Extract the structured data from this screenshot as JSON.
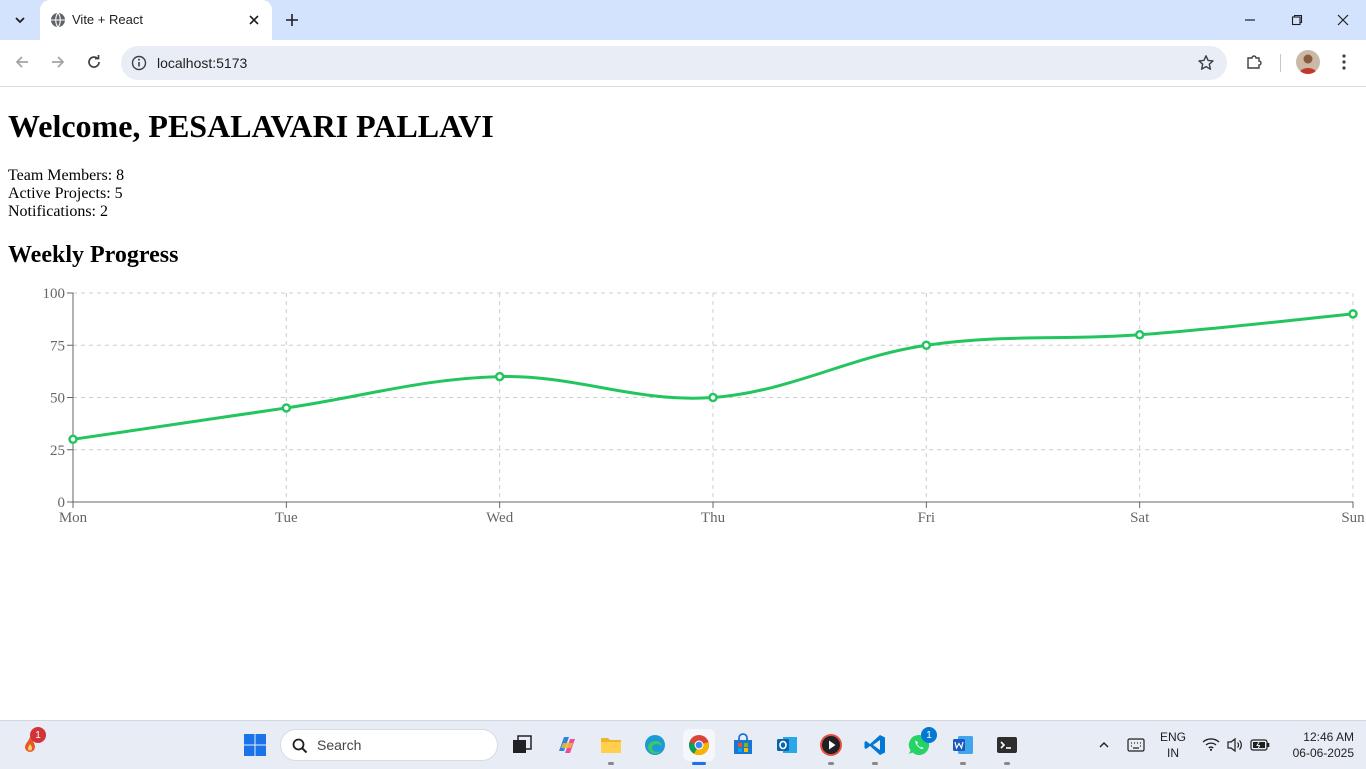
{
  "browser": {
    "tab_title": "Vite + React",
    "url": "localhost:5173"
  },
  "page": {
    "title": "Welcome, PESALAVARI PALLAVI",
    "stats": [
      {
        "text": "Team Members: 8"
      },
      {
        "text": "Active Projects: 5"
      },
      {
        "text": "Notifications: 2"
      }
    ],
    "section_title": "Weekly Progress"
  },
  "chart_data": {
    "type": "line",
    "categories": [
      "Mon",
      "Tue",
      "Wed",
      "Thu",
      "Fri",
      "Sat",
      "Sun"
    ],
    "values": [
      30,
      45,
      60,
      50,
      75,
      80,
      90
    ],
    "ylim": [
      0,
      100
    ],
    "yticks": [
      0,
      25,
      50,
      75,
      100
    ],
    "grid": true,
    "line_color": "#22c55e"
  },
  "taskbar": {
    "search_placeholder": "Search",
    "apps": [
      {
        "name": "start",
        "icon": "windows-logo-icon"
      },
      {
        "name": "task-view",
        "icon": "task-view-icon"
      },
      {
        "name": "copilot",
        "icon": "copilot-icon"
      },
      {
        "name": "file-explorer",
        "icon": "folder-icon"
      },
      {
        "name": "edge",
        "icon": "edge-icon"
      },
      {
        "name": "chrome",
        "icon": "chrome-icon"
      },
      {
        "name": "store",
        "icon": "store-icon"
      },
      {
        "name": "outlook",
        "icon": "outlook-icon"
      },
      {
        "name": "media-player",
        "icon": "play-icon"
      },
      {
        "name": "vscode",
        "icon": "vscode-icon"
      },
      {
        "name": "whatsapp",
        "icon": "whatsapp-icon"
      },
      {
        "name": "word",
        "icon": "word-icon"
      },
      {
        "name": "terminal",
        "icon": "terminal-icon"
      }
    ],
    "notification_badge": "1",
    "whatsapp_badge": "1",
    "language_line1": "ENG",
    "language_line2": "IN",
    "time": "12:46 AM",
    "date": "06-06-2025"
  }
}
